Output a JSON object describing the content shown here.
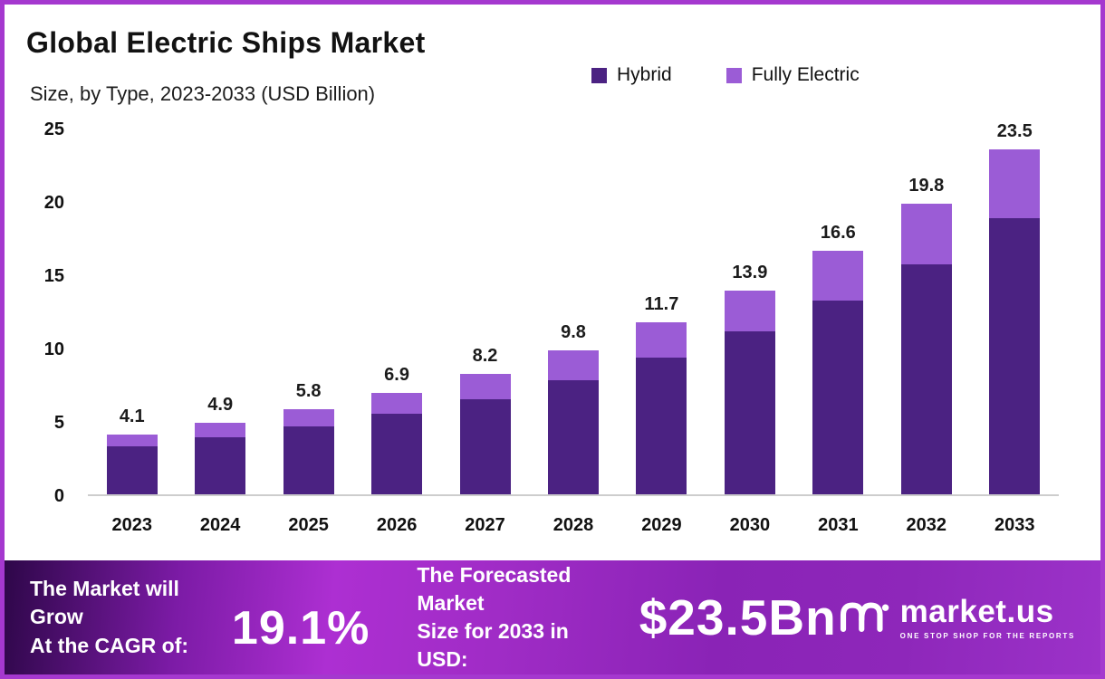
{
  "page": {
    "title": "Global Electric Ships Market",
    "subtitle": "Size, by Type, 2023-2033 (USD Billion)"
  },
  "legend": [
    {
      "label": "Hybrid",
      "color": "#4b2282",
      "icon": "legend-square-icon"
    },
    {
      "label": "Fully Electric",
      "color": "#9b5cd6",
      "icon": "legend-square-icon"
    }
  ],
  "chart_data": {
    "type": "bar",
    "stacked": true,
    "title": "Global Electric Ships Market",
    "subtitle": "Size, by Type, 2023-2033 (USD Billion)",
    "categories": [
      "2023",
      "2024",
      "2025",
      "2026",
      "2027",
      "2028",
      "2029",
      "2030",
      "2031",
      "2032",
      "2033"
    ],
    "series": [
      {
        "name": "Hybrid",
        "color": "#4b2282",
        "values": [
          3.3,
          3.9,
          4.6,
          5.5,
          6.5,
          7.8,
          9.3,
          11.1,
          13.2,
          15.7,
          18.8
        ]
      },
      {
        "name": "Fully Electric",
        "color": "#9b5cd6",
        "values": [
          0.8,
          1.0,
          1.2,
          1.4,
          1.7,
          2.0,
          2.4,
          2.8,
          3.4,
          4.1,
          4.7
        ]
      }
    ],
    "totals": [
      "4.1",
      "4.9",
      "5.8",
      "6.9",
      "8.2",
      "9.8",
      "11.7",
      "13.9",
      "16.6",
      "19.8",
      "23.5"
    ],
    "ylim": [
      0,
      25
    ],
    "yticks": [
      0,
      5,
      10,
      15,
      20,
      25
    ],
    "grid": false,
    "legend_position": "top"
  },
  "footer": {
    "cagr_line1": "The Market will Grow",
    "cagr_line2": "At the CAGR of:",
    "cagr_value": "19.1%",
    "forecast_line1": "The Forecasted Market",
    "forecast_line2": "Size for 2033 in USD:",
    "forecast_value": "$23.5Bn",
    "brand_name": "market.us",
    "brand_tagline": "ONE STOP SHOP FOR THE REPORTS",
    "brand_icon": "marketus-logo-icon"
  },
  "colors": {
    "border": "#a538cf",
    "hybrid": "#4b2282",
    "fully_electric": "#9b5cd6",
    "banner_gradient_start": "#2e0749",
    "banner_gradient_mid": "#ad2fd2",
    "banner_gradient_end": "#9c32c9"
  }
}
